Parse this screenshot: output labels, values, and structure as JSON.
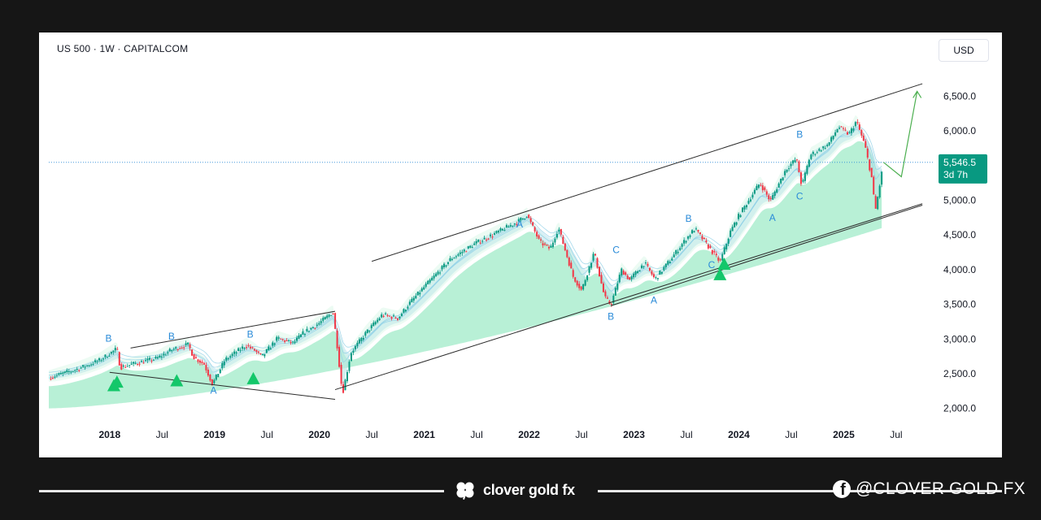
{
  "chart_data": {
    "type": "candlestick",
    "title": "US 500 · 1W · CAPITALCOM",
    "currency": "USD",
    "x_tick_labels": [
      "2018",
      "Jul",
      "2019",
      "Jul",
      "2020",
      "Jul",
      "2021",
      "Jul",
      "2022",
      "Jul",
      "2023",
      "Jul",
      "2024",
      "Jul",
      "2025",
      "Jul"
    ],
    "x_ticks": [
      2018.0,
      2018.5,
      2019.0,
      2019.5,
      2020.0,
      2020.5,
      2021.0,
      2021.5,
      2022.0,
      2022.5,
      2023.0,
      2023.5,
      2024.0,
      2024.5,
      2025.0,
      2025.5
    ],
    "x_range": [
      2017.42,
      2025.78
    ],
    "y_tick_labels": [
      "6,500.0",
      "6,000.0",
      "5,500.0",
      "5,000.0",
      "4,500.0",
      "4,000.0",
      "3,500.0",
      "3,000.0",
      "2,500.0",
      "2,000.0"
    ],
    "y_ticks": [
      6500,
      6000,
      5500,
      5000,
      4500,
      4000,
      3500,
      3000,
      2500,
      2000
    ],
    "y_range": [
      1820,
      6950
    ],
    "grid": false,
    "current_price": {
      "value": 5546.5,
      "label": "5,546.5",
      "countdown": "3d 7h"
    },
    "price_path": [
      [
        2017.42,
        2440
      ],
      [
        2017.7,
        2570
      ],
      [
        2017.9,
        2690
      ],
      [
        2018.07,
        2860
      ],
      [
        2018.1,
        2590
      ],
      [
        2018.25,
        2650
      ],
      [
        2018.45,
        2720
      ],
      [
        2018.6,
        2850
      ],
      [
        2018.75,
        2920
      ],
      [
        2018.8,
        2740
      ],
      [
        2018.9,
        2640
      ],
      [
        2018.98,
        2350
      ],
      [
        2019.1,
        2700
      ],
      [
        2019.3,
        2910
      ],
      [
        2019.38,
        2840
      ],
      [
        2019.45,
        2740
      ],
      [
        2019.6,
        3010
      ],
      [
        2019.75,
        2940
      ],
      [
        2019.85,
        3090
      ],
      [
        2020.0,
        3230
      ],
      [
        2020.13,
        3390
      ],
      [
        2020.17,
        2900
      ],
      [
        2020.22,
        2200
      ],
      [
        2020.3,
        2800
      ],
      [
        2020.45,
        3100
      ],
      [
        2020.6,
        3350
      ],
      [
        2020.75,
        3300
      ],
      [
        2020.85,
        3500
      ],
      [
        2021.0,
        3750
      ],
      [
        2021.25,
        4150
      ],
      [
        2021.5,
        4390
      ],
      [
        2021.65,
        4500
      ],
      [
        2021.9,
        4700
      ],
      [
        2021.98,
        4790
      ],
      [
        2022.1,
        4400
      ],
      [
        2022.2,
        4300
      ],
      [
        2022.28,
        4600
      ],
      [
        2022.42,
        3900
      ],
      [
        2022.5,
        3700
      ],
      [
        2022.62,
        4250
      ],
      [
        2022.72,
        3600
      ],
      [
        2022.78,
        3490
      ],
      [
        2022.88,
        4000
      ],
      [
        2022.96,
        3850
      ],
      [
        2023.1,
        4100
      ],
      [
        2023.2,
        3860
      ],
      [
        2023.35,
        4150
      ],
      [
        2023.5,
        4450
      ],
      [
        2023.58,
        4590
      ],
      [
        2023.7,
        4350
      ],
      [
        2023.82,
        4110
      ],
      [
        2023.92,
        4550
      ],
      [
        2024.0,
        4780
      ],
      [
        2024.2,
        5250
      ],
      [
        2024.3,
        4990
      ],
      [
        2024.45,
        5450
      ],
      [
        2024.55,
        5600
      ],
      [
        2024.6,
        5200
      ],
      [
        2024.68,
        5650
      ],
      [
        2024.85,
        5800
      ],
      [
        2024.95,
        6060
      ],
      [
        2025.05,
        5950
      ],
      [
        2025.12,
        6140
      ],
      [
        2025.2,
        5800
      ],
      [
        2025.27,
        5300
      ],
      [
        2025.3,
        4830
      ],
      [
        2025.35,
        5280
      ],
      [
        2025.38,
        5546.5
      ]
    ],
    "trend_lines": [
      {
        "from": [
          2020.5,
          4120
        ],
        "to": [
          2025.75,
          6680
        ]
      },
      {
        "from": [
          2022.78,
          3480
        ],
        "to": [
          2025.75,
          4930
        ]
      },
      {
        "from": [
          2020.15,
          2270
        ],
        "to": [
          2025.75,
          4950
        ]
      },
      {
        "from": [
          2018.0,
          2520
        ],
        "to": [
          2020.15,
          2130
        ]
      },
      {
        "from": [
          2018.2,
          2870
        ],
        "to": [
          2020.15,
          3400
        ]
      }
    ],
    "projection": [
      [
        2025.38,
        5546.5
      ],
      [
        2025.55,
        5340
      ],
      [
        2025.7,
        6570
      ]
    ],
    "wave_labels": [
      {
        "text": "B",
        "x": 2017.99,
        "y": 2960
      },
      {
        "text": "B",
        "x": 2018.59,
        "y": 2990
      },
      {
        "text": "B",
        "x": 2019.34,
        "y": 3020
      },
      {
        "text": "A",
        "x": 2018.99,
        "y": 2210
      },
      {
        "text": "A",
        "x": 2021.91,
        "y": 4610
      },
      {
        "text": "C",
        "x": 2022.83,
        "y": 4240
      },
      {
        "text": "B",
        "x": 2022.78,
        "y": 3280
      },
      {
        "text": "A",
        "x": 2023.19,
        "y": 3510
      },
      {
        "text": "B",
        "x": 2023.52,
        "y": 4690
      },
      {
        "text": "C",
        "x": 2023.74,
        "y": 4020
      },
      {
        "text": "A",
        "x": 2024.32,
        "y": 4700
      },
      {
        "text": "C",
        "x": 2024.58,
        "y": 5010
      },
      {
        "text": "B",
        "x": 2024.58,
        "y": 5900
      }
    ],
    "signal_markers": [
      [
        2018.04,
        2330
      ],
      [
        2018.07,
        2380
      ],
      [
        2018.64,
        2400
      ],
      [
        2019.37,
        2430
      ],
      [
        2023.82,
        3930
      ],
      [
        2023.86,
        4080
      ]
    ]
  },
  "footer": {
    "brand": "clover gold fx",
    "social": "@CLOVER GOLD FX",
    "brand_icon": "clover-icon",
    "social_icon": "facebook-icon",
    "line_color": "#e8e8e8"
  },
  "colors": {
    "up": "#089981",
    "down": "#f23645",
    "cloud": "#7ee3b4",
    "cloud_light": "#c9f3dd",
    "band": "#a9dcec",
    "price_label": "#089981",
    "projection": "#4caf50",
    "wave_label": "#2a8bd8",
    "signal": "#13c76a"
  }
}
